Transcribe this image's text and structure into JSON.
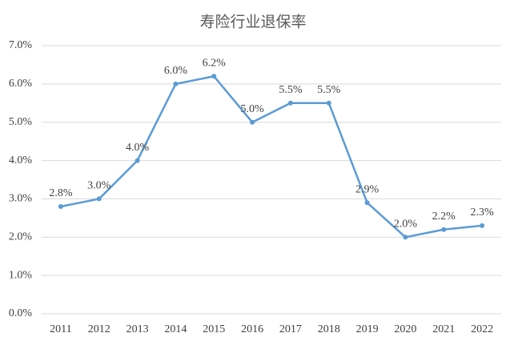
{
  "chart_data": {
    "type": "line",
    "title": "寿险行业退保率",
    "categories": [
      "2011",
      "2012",
      "2013",
      "2014",
      "2015",
      "2016",
      "2017",
      "2018",
      "2019",
      "2020",
      "2021",
      "2022"
    ],
    "values": [
      2.8,
      3.0,
      4.0,
      6.0,
      6.2,
      5.0,
      5.5,
      5.5,
      2.9,
      2.0,
      2.2,
      2.3
    ],
    "value_labels": [
      "2.8%",
      "3.0%",
      "4.0%",
      "6.0%",
      "6.2%",
      "5.0%",
      "5.5%",
      "5.5%",
      "2.9%",
      "2.0%",
      "2.2%",
      "2.3%"
    ],
    "color": "#5b9bd5",
    "ylim": [
      0,
      7
    ],
    "yticks": [
      {
        "value": 0,
        "label": "0.0%"
      },
      {
        "value": 1,
        "label": "1.0%"
      },
      {
        "value": 2,
        "label": "2.0%"
      },
      {
        "value": 3,
        "label": "3.0%"
      },
      {
        "value": 4,
        "label": "4.0%"
      },
      {
        "value": 5,
        "label": "5.0%"
      },
      {
        "value": 6,
        "label": "6.0%"
      },
      {
        "value": 7,
        "label": "7.0%"
      }
    ],
    "grid": true
  }
}
